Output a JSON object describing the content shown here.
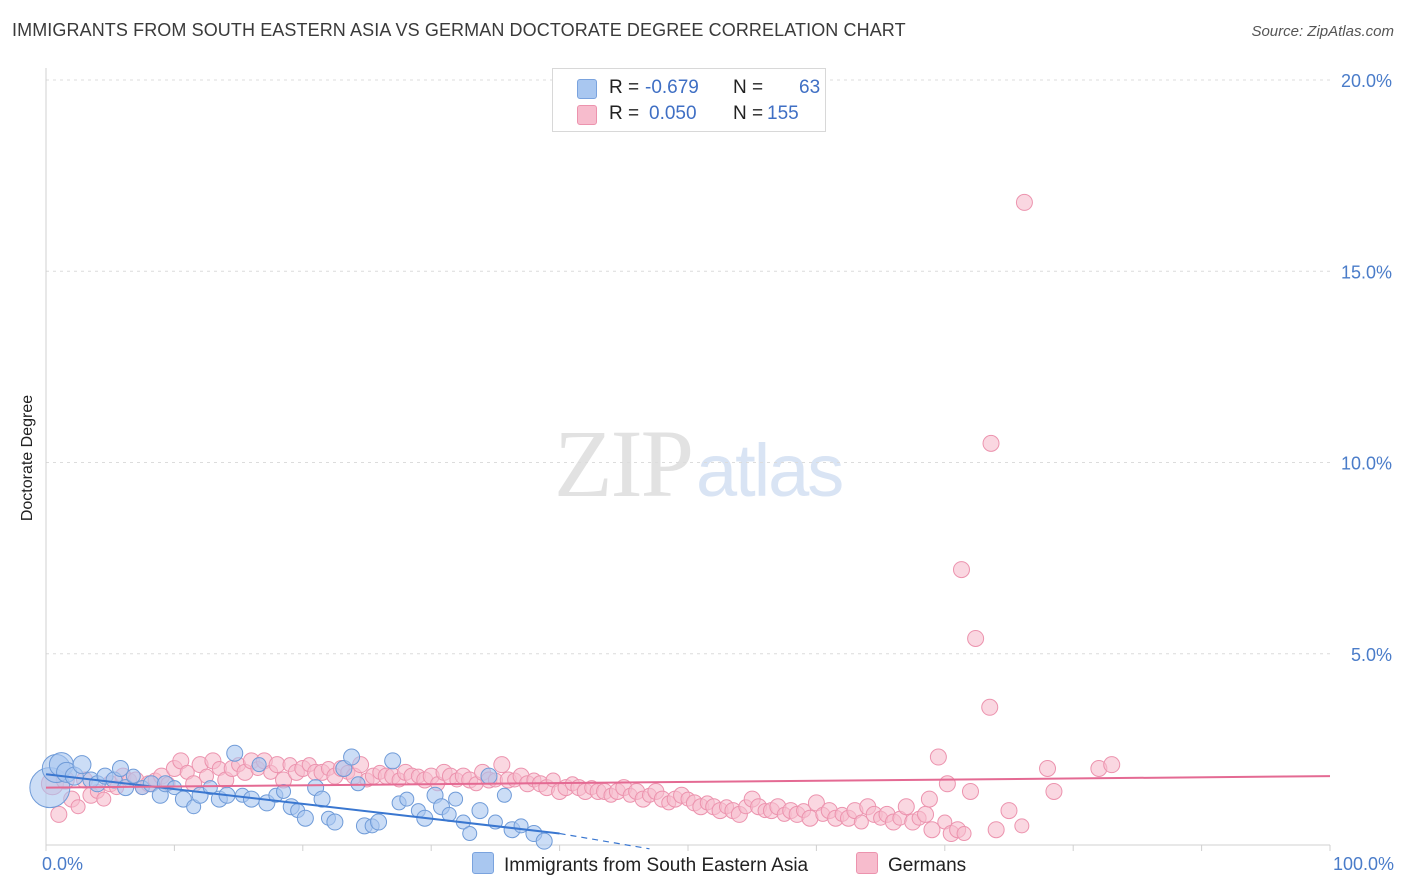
{
  "header": {
    "title": "IMMIGRANTS FROM SOUTH EASTERN ASIA VS GERMAN DOCTORATE DEGREE CORRELATION CHART",
    "source": "Source: ZipAtlas.com"
  },
  "watermark": {
    "zip": "ZIP",
    "atlas": "atlas"
  },
  "legend": {
    "rows": [
      {
        "r_label": "R =",
        "r_value": "-0.679",
        "n_label": "N =",
        "n_value": "63",
        "color": "#a9c7f0",
        "border": "#7aa3de"
      },
      {
        "r_label": "R =",
        "r_value": "0.050",
        "n_label": "N =",
        "n_value": "155",
        "color": "#f7bccd",
        "border": "#ec93ae"
      }
    ]
  },
  "bottom_legend": [
    {
      "label": "Immigrants from South Eastern Asia",
      "color": "#a9c7f0",
      "border": "#7aa3de"
    },
    {
      "label": "Germans",
      "color": "#f7bccd",
      "border": "#ec93ae"
    }
  ],
  "chart_data": {
    "type": "scatter",
    "ylabel": "Doctorate Degree",
    "xlabel": "",
    "xlim": [
      0,
      100
    ],
    "ylim": [
      0,
      20
    ],
    "x_tick_labels": [
      "0.0%",
      "100.0%"
    ],
    "y_ticks": [
      5,
      10,
      15,
      20
    ],
    "y_tick_labels": [
      "5.0%",
      "10.0%",
      "15.0%",
      "20.0%"
    ],
    "grid": "horizontal dashed",
    "colors": {
      "blue_fill": "#a9c7f0",
      "blue_stroke": "#6f9bd8",
      "pink_fill": "#f7bccd",
      "pink_stroke": "#ec93ae",
      "blue_line": "#3a77d0",
      "pink_line": "#e46a93"
    },
    "series": [
      {
        "name": "Immigrants from South Eastern Asia",
        "points": [
          [
            0.3,
            1.5,
            20
          ],
          [
            0.8,
            2.0,
            14
          ],
          [
            1.2,
            2.1,
            12
          ],
          [
            1.6,
            1.9,
            10
          ],
          [
            2.2,
            1.8,
            9
          ],
          [
            2.8,
            2.1,
            9
          ],
          [
            3.5,
            1.7,
            8
          ],
          [
            4.0,
            1.6,
            8
          ],
          [
            4.6,
            1.8,
            8
          ],
          [
            5.3,
            1.7,
            8
          ],
          [
            5.8,
            2.0,
            8
          ],
          [
            6.2,
            1.5,
            8
          ],
          [
            6.8,
            1.8,
            7
          ],
          [
            7.5,
            1.5,
            7
          ],
          [
            8.2,
            1.6,
            8
          ],
          [
            8.9,
            1.3,
            8
          ],
          [
            9.3,
            1.6,
            8
          ],
          [
            10.0,
            1.5,
            7
          ],
          [
            10.7,
            1.2,
            8
          ],
          [
            11.5,
            1.0,
            7
          ],
          [
            12.0,
            1.3,
            8
          ],
          [
            12.8,
            1.5,
            7
          ],
          [
            13.5,
            1.2,
            8
          ],
          [
            14.1,
            1.3,
            8
          ],
          [
            14.7,
            2.4,
            8
          ],
          [
            15.3,
            1.3,
            7
          ],
          [
            16.0,
            1.2,
            8
          ],
          [
            16.6,
            2.1,
            7
          ],
          [
            17.2,
            1.1,
            8
          ],
          [
            17.9,
            1.3,
            7
          ],
          [
            18.5,
            1.4,
            7
          ],
          [
            19.1,
            1.0,
            8
          ],
          [
            19.6,
            0.9,
            7
          ],
          [
            20.2,
            0.7,
            8
          ],
          [
            21.0,
            1.5,
            8
          ],
          [
            21.5,
            1.2,
            8
          ],
          [
            22.0,
            0.7,
            7
          ],
          [
            22.5,
            0.6,
            8
          ],
          [
            23.2,
            2.0,
            8
          ],
          [
            23.8,
            2.3,
            8
          ],
          [
            24.3,
            1.6,
            7
          ],
          [
            24.8,
            0.5,
            8
          ],
          [
            25.4,
            0.5,
            7
          ],
          [
            25.9,
            0.6,
            8
          ],
          [
            27.0,
            2.2,
            8
          ],
          [
            27.5,
            1.1,
            7
          ],
          [
            28.1,
            1.2,
            7
          ],
          [
            29.0,
            0.9,
            7
          ],
          [
            29.5,
            0.7,
            8
          ],
          [
            30.3,
            1.3,
            8
          ],
          [
            30.8,
            1.0,
            8
          ],
          [
            31.4,
            0.8,
            7
          ],
          [
            31.9,
            1.2,
            7
          ],
          [
            32.5,
            0.6,
            7
          ],
          [
            33.0,
            0.3,
            7
          ],
          [
            33.8,
            0.9,
            8
          ],
          [
            34.5,
            1.8,
            8
          ],
          [
            35.0,
            0.6,
            7
          ],
          [
            35.7,
            1.3,
            7
          ],
          [
            36.3,
            0.4,
            8
          ],
          [
            37.0,
            0.5,
            7
          ],
          [
            38.0,
            0.3,
            8
          ],
          [
            38.8,
            0.1,
            8
          ]
        ]
      },
      {
        "name": "Germans",
        "points": [
          [
            0.5,
            1.6,
            11
          ],
          [
            1.0,
            0.8,
            8
          ],
          [
            1.5,
            1.7,
            9
          ],
          [
            2.0,
            1.2,
            8
          ],
          [
            2.5,
            1.0,
            7
          ],
          [
            3.0,
            1.7,
            8
          ],
          [
            3.5,
            1.3,
            8
          ],
          [
            4.0,
            1.4,
            7
          ],
          [
            4.5,
            1.2,
            7
          ],
          [
            5.0,
            1.6,
            8
          ],
          [
            5.5,
            1.5,
            7
          ],
          [
            6.0,
            1.8,
            8
          ],
          [
            6.5,
            1.7,
            7
          ],
          [
            7.0,
            1.7,
            8
          ],
          [
            7.5,
            1.5,
            7
          ],
          [
            8.0,
            1.6,
            8
          ],
          [
            8.5,
            1.7,
            7
          ],
          [
            9.0,
            1.8,
            8
          ],
          [
            9.5,
            1.6,
            7
          ],
          [
            10.0,
            2.0,
            8
          ],
          [
            10.5,
            2.2,
            8
          ],
          [
            11.0,
            1.9,
            7
          ],
          [
            11.5,
            1.6,
            8
          ],
          [
            12.0,
            2.1,
            8
          ],
          [
            12.5,
            1.8,
            7
          ],
          [
            13.0,
            2.2,
            8
          ],
          [
            13.5,
            2.0,
            7
          ],
          [
            14.0,
            1.7,
            8
          ],
          [
            14.5,
            2.0,
            8
          ],
          [
            15.0,
            2.1,
            7
          ],
          [
            15.5,
            1.9,
            8
          ],
          [
            16.0,
            2.2,
            8
          ],
          [
            16.5,
            2.0,
            7
          ],
          [
            17.0,
            2.2,
            8
          ],
          [
            17.5,
            1.9,
            7
          ],
          [
            18.0,
            2.1,
            8
          ],
          [
            18.5,
            1.7,
            8
          ],
          [
            19.0,
            2.1,
            7
          ],
          [
            19.5,
            1.9,
            8
          ],
          [
            20.0,
            2.0,
            8
          ],
          [
            20.5,
            2.1,
            7
          ],
          [
            21.0,
            1.9,
            8
          ],
          [
            21.5,
            1.9,
            8
          ],
          [
            22.0,
            2.0,
            7
          ],
          [
            22.5,
            1.8,
            8
          ],
          [
            23.0,
            2.0,
            8
          ],
          [
            23.5,
            1.9,
            7
          ],
          [
            24.0,
            1.8,
            8
          ],
          [
            24.5,
            2.1,
            8
          ],
          [
            25.0,
            1.7,
            7
          ],
          [
            25.5,
            1.8,
            8
          ],
          [
            26.0,
            1.9,
            7
          ],
          [
            26.5,
            1.8,
            8
          ],
          [
            27.0,
            1.8,
            8
          ],
          [
            27.5,
            1.7,
            7
          ],
          [
            28.0,
            1.9,
            8
          ],
          [
            28.5,
            1.8,
            8
          ],
          [
            29.0,
            1.8,
            7
          ],
          [
            29.5,
            1.7,
            8
          ],
          [
            30.0,
            1.8,
            8
          ],
          [
            30.5,
            1.6,
            7
          ],
          [
            31.0,
            1.9,
            8
          ],
          [
            31.5,
            1.8,
            8
          ],
          [
            32.0,
            1.7,
            7
          ],
          [
            32.5,
            1.8,
            8
          ],
          [
            33.0,
            1.7,
            8
          ],
          [
            33.5,
            1.6,
            7
          ],
          [
            34.0,
            1.9,
            8
          ],
          [
            34.5,
            1.7,
            8
          ],
          [
            35.0,
            1.7,
            7
          ],
          [
            35.5,
            2.1,
            8
          ],
          [
            36.0,
            1.7,
            8
          ],
          [
            36.5,
            1.7,
            7
          ],
          [
            37.0,
            1.8,
            8
          ],
          [
            37.5,
            1.6,
            8
          ],
          [
            38.0,
            1.7,
            7
          ],
          [
            38.5,
            1.6,
            8
          ],
          [
            39.0,
            1.5,
            8
          ],
          [
            39.5,
            1.7,
            7
          ],
          [
            40.0,
            1.4,
            8
          ],
          [
            40.5,
            1.5,
            8
          ],
          [
            41.0,
            1.6,
            7
          ],
          [
            41.5,
            1.5,
            8
          ],
          [
            42.0,
            1.4,
            8
          ],
          [
            42.5,
            1.5,
            7
          ],
          [
            43.0,
            1.4,
            8
          ],
          [
            43.5,
            1.4,
            8
          ],
          [
            44.0,
            1.3,
            7
          ],
          [
            44.5,
            1.4,
            8
          ],
          [
            45.0,
            1.5,
            8
          ],
          [
            45.5,
            1.3,
            7
          ],
          [
            46.0,
            1.4,
            8
          ],
          [
            46.5,
            1.2,
            8
          ],
          [
            47.0,
            1.3,
            7
          ],
          [
            47.5,
            1.4,
            8
          ],
          [
            48.0,
            1.2,
            8
          ],
          [
            48.5,
            1.1,
            7
          ],
          [
            49.0,
            1.2,
            8
          ],
          [
            49.5,
            1.3,
            8
          ],
          [
            50.0,
            1.2,
            7
          ],
          [
            50.5,
            1.1,
            8
          ],
          [
            51.0,
            1.0,
            8
          ],
          [
            51.5,
            1.1,
            7
          ],
          [
            52.0,
            1.0,
            8
          ],
          [
            52.5,
            0.9,
            8
          ],
          [
            53.0,
            1.0,
            7
          ],
          [
            53.5,
            0.9,
            8
          ],
          [
            54.0,
            0.8,
            8
          ],
          [
            54.5,
            1.0,
            7
          ],
          [
            55.0,
            1.2,
            8
          ],
          [
            55.5,
            1.0,
            8
          ],
          [
            56.0,
            0.9,
            7
          ],
          [
            56.5,
            0.9,
            8
          ],
          [
            57.0,
            1.0,
            8
          ],
          [
            57.5,
            0.8,
            7
          ],
          [
            58.0,
            0.9,
            8
          ],
          [
            58.5,
            0.8,
            8
          ],
          [
            59.0,
            0.9,
            7
          ],
          [
            59.5,
            0.7,
            8
          ],
          [
            60.0,
            1.1,
            8
          ],
          [
            60.5,
            0.8,
            7
          ],
          [
            61.0,
            0.9,
            8
          ],
          [
            61.5,
            0.7,
            8
          ],
          [
            62.0,
            0.8,
            7
          ],
          [
            62.5,
            0.7,
            8
          ],
          [
            63.0,
            0.9,
            8
          ],
          [
            63.5,
            0.6,
            7
          ],
          [
            64.0,
            1.0,
            8
          ],
          [
            64.5,
            0.8,
            8
          ],
          [
            65.0,
            0.7,
            7
          ],
          [
            65.5,
            0.8,
            8
          ],
          [
            66.0,
            0.6,
            8
          ],
          [
            66.5,
            0.7,
            7
          ],
          [
            67.0,
            1.0,
            8
          ],
          [
            67.5,
            0.6,
            8
          ],
          [
            68.0,
            0.7,
            7
          ],
          [
            68.5,
            0.8,
            8
          ],
          [
            69.0,
            0.4,
            8
          ],
          [
            69.5,
            2.3,
            8
          ],
          [
            70.0,
            0.6,
            7
          ],
          [
            70.5,
            0.3,
            8
          ],
          [
            71.0,
            0.4,
            8
          ],
          [
            71.5,
            0.3,
            7
          ],
          [
            72.0,
            1.4,
            8
          ],
          [
            74.0,
            0.4,
            8
          ],
          [
            75.0,
            0.9,
            8
          ],
          [
            76.0,
            0.5,
            7
          ],
          [
            78.0,
            2.0,
            8
          ],
          [
            78.5,
            1.4,
            8
          ],
          [
            82.0,
            2.0,
            8
          ],
          [
            83.0,
            2.1,
            8
          ],
          [
            76.2,
            16.8,
            8
          ],
          [
            73.6,
            10.5,
            8
          ],
          [
            71.3,
            7.2,
            8
          ],
          [
            72.4,
            5.4,
            8
          ],
          [
            73.5,
            3.6,
            8
          ],
          [
            70.2,
            1.6,
            8
          ],
          [
            68.8,
            1.2,
            8
          ]
        ]
      }
    ],
    "trend_lines": [
      {
        "series": "Immigrants from South Eastern Asia",
        "from": [
          0,
          1.85
        ],
        "to": [
          40,
          0.3
        ],
        "dashed_to": [
          47,
          -0.1
        ]
      },
      {
        "series": "Germans",
        "from": [
          0,
          1.5
        ],
        "to": [
          100,
          1.8
        ]
      }
    ]
  }
}
